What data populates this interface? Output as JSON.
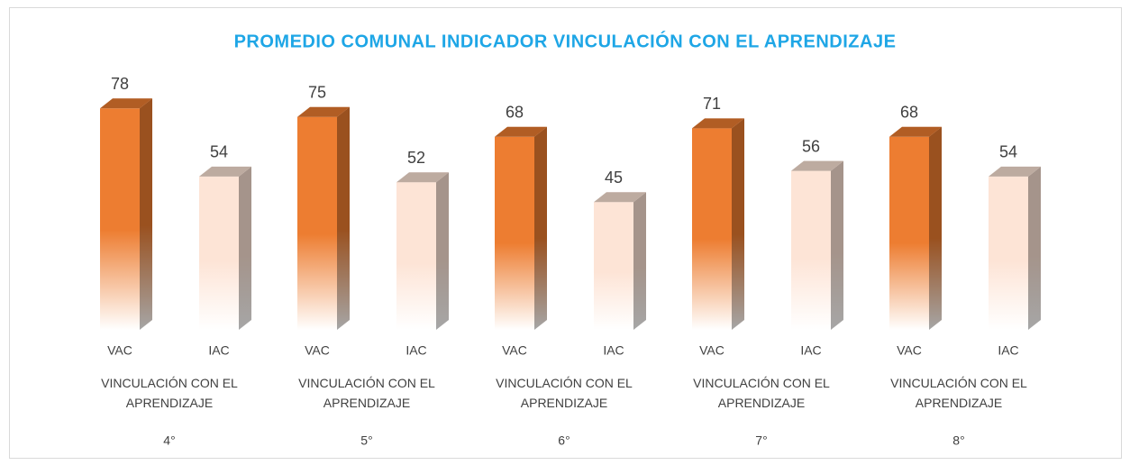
{
  "chart_data": {
    "type": "bar",
    "title": "PROMEDIO COMUNAL INDICADOR VINCULACIÓN CON EL APRENDIZAJE",
    "colors": [
      "#ed7d31",
      "#fde4d6"
    ],
    "groups": [
      {
        "name": "4°",
        "subtitle": "VINCULACIÓN CON EL APRENDIZAJE",
        "categories": [
          "VAC",
          "IAC"
        ],
        "values": [
          78,
          54
        ]
      },
      {
        "name": "5°",
        "subtitle": "VINCULACIÓN CON EL APRENDIZAJE",
        "categories": [
          "VAC",
          "IAC"
        ],
        "values": [
          75,
          52
        ]
      },
      {
        "name": "6°",
        "subtitle": "VINCULACIÓN CON EL APRENDIZAJE",
        "categories": [
          "VAC",
          "IAC"
        ],
        "values": [
          68,
          45
        ]
      },
      {
        "name": "7°",
        "subtitle": "VINCULACIÓN CON EL APRENDIZAJE",
        "categories": [
          "VAC",
          "IAC"
        ],
        "values": [
          71,
          56
        ]
      },
      {
        "name": "8°",
        "subtitle": "VINCULACIÓN CON EL APRENDIZAJE",
        "categories": [
          "VAC",
          "IAC"
        ],
        "values": [
          68,
          54
        ]
      }
    ]
  }
}
